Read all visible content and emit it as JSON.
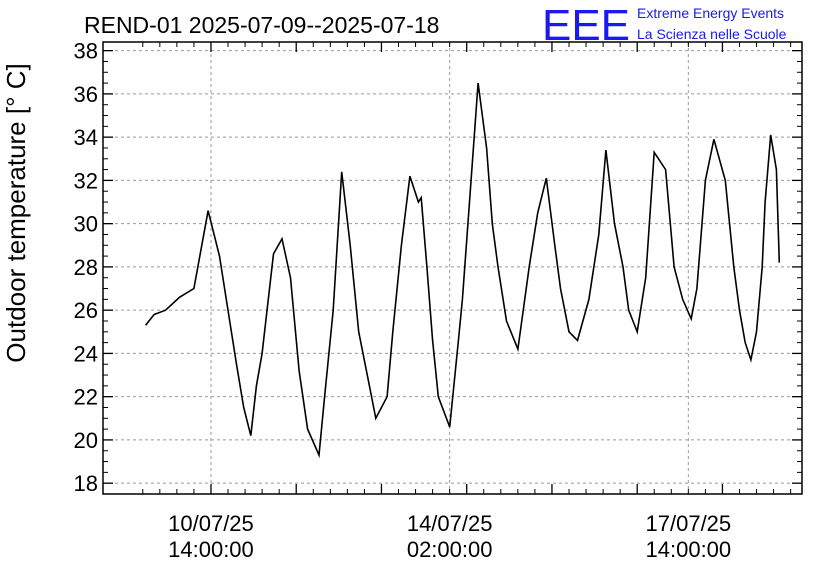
{
  "logo": {
    "letters": "EEE",
    "line1": "Extreme Energy Events",
    "line2": "La Scienza nelle Scuole",
    "color": "#1a1aee"
  },
  "chart_data": {
    "type": "line",
    "title": "REND-01 2025-07-09--2025-07-18",
    "ylabel": "Outdoor temperature [° C]",
    "xlabel": "",
    "ylim": [
      17.5,
      38.4
    ],
    "yticks": [
      18,
      20,
      22,
      24,
      26,
      28,
      30,
      32,
      34,
      36,
      38
    ],
    "xlim": [
      "2025-07-09 00:00",
      "2025-07-19 06:00"
    ],
    "xticks": [
      {
        "x": "2025-07-10 14:00",
        "line1": "10/07/25",
        "line2": "14:00:00"
      },
      {
        "x": "2025-07-14 02:00",
        "line1": "14/07/25",
        "line2": "02:00:00"
      },
      {
        "x": "2025-07-17 14:00",
        "line1": "17/07/25",
        "line2": "14:00:00"
      }
    ],
    "grid": true,
    "series": [
      {
        "color": "#000000",
        "x": [
          "2025-07-09 15:00",
          "2025-07-09 18:00",
          "2025-07-09 22:00",
          "2025-07-10 03:00",
          "2025-07-10 08:00",
          "2025-07-10 13:00",
          "2025-07-10 17:00",
          "2025-07-10 20:00",
          "2025-07-10 23:00",
          "2025-07-11 01:30",
          "2025-07-11 04:00",
          "2025-07-11 06:00",
          "2025-07-11 08:00",
          "2025-07-11 12:00",
          "2025-07-11 15:00",
          "2025-07-11 18:00",
          "2025-07-11 21:00",
          "2025-07-12 00:00",
          "2025-07-12 04:00",
          "2025-07-12 06:00",
          "2025-07-12 09:00",
          "2025-07-12 12:00",
          "2025-07-12 15:00",
          "2025-07-12 18:00",
          "2025-07-12 21:00",
          "2025-07-13 00:00",
          "2025-07-13 04:00",
          "2025-07-13 06:00",
          "2025-07-13 09:00",
          "2025-07-13 12:00",
          "2025-07-13 15:00",
          "2025-07-13 16:00",
          "2025-07-13 18:00",
          "2025-07-13 20:00",
          "2025-07-13 22:00",
          "2025-07-14 02:00",
          "2025-07-14 05:00",
          "2025-07-14 06:30",
          "2025-07-14 09:00",
          "2025-07-14 12:00",
          "2025-07-14 15:00",
          "2025-07-14 17:00",
          "2025-07-14 19:00",
          "2025-07-14 22:00",
          "2025-07-15 02:00",
          "2025-07-15 06:00",
          "2025-07-15 09:00",
          "2025-07-15 12:00",
          "2025-07-15 15:00",
          "2025-07-15 17:00",
          "2025-07-15 20:00",
          "2025-07-15 23:00",
          "2025-07-16 03:00",
          "2025-07-16 06:30",
          "2025-07-16 09:00",
          "2025-07-16 12:00",
          "2025-07-16 15:00",
          "2025-07-16 17:00",
          "2025-07-16 20:00",
          "2025-07-16 23:00",
          "2025-07-17 02:00",
          "2025-07-17 06:00",
          "2025-07-17 09:00",
          "2025-07-17 12:00",
          "2025-07-17 15:00",
          "2025-07-17 17:00",
          "2025-07-17 20:00",
          "2025-07-17 23:00",
          "2025-07-18 03:00",
          "2025-07-18 06:00",
          "2025-07-18 08:00",
          "2025-07-18 10:00",
          "2025-07-18 12:00",
          "2025-07-18 14:00",
          "2025-07-18 16:00",
          "2025-07-18 17:00",
          "2025-07-18 19:00",
          "2025-07-18 21:00",
          "2025-07-18 22:00"
        ],
        "values": [
          25.3,
          25.8,
          26.0,
          26.6,
          27.0,
          30.6,
          28.5,
          26.0,
          23.5,
          21.5,
          20.2,
          22.5,
          24.0,
          28.6,
          29.3,
          27.5,
          23.2,
          20.5,
          19.3,
          22.0,
          26.0,
          32.4,
          29.0,
          25.0,
          23.0,
          21.0,
          22.0,
          25.0,
          29.0,
          32.2,
          31.0,
          31.2,
          28.0,
          24.6,
          22.0,
          20.6,
          24.5,
          26.5,
          31.0,
          36.5,
          33.5,
          30.0,
          28.0,
          25.5,
          24.2,
          28.0,
          30.5,
          32.1,
          29.0,
          27.0,
          25.0,
          24.6,
          26.5,
          29.5,
          33.4,
          30.0,
          28.0,
          26.0,
          25.0,
          27.5,
          33.3,
          32.5,
          28.0,
          26.5,
          25.6,
          27.0,
          32.0,
          33.9,
          32.0,
          28.0,
          26.0,
          24.5,
          23.7,
          25.0,
          28.0,
          31.0,
          34.1,
          32.5,
          28.2
        ]
      }
    ]
  }
}
